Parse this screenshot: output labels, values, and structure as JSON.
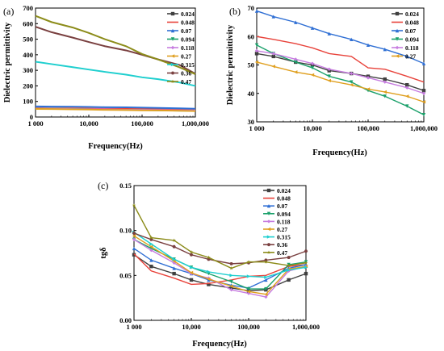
{
  "chart_data": [
    {
      "type": "line",
      "panel_label": "(a)",
      "xlabel": "Frequency(Hz)",
      "ylabel": "Dielectric permittivity",
      "xscale": "log",
      "xlim": [
        1000,
        1000000
      ],
      "ylim": [
        0,
        700
      ],
      "x_ticks": [
        "1 000",
        "10,000",
        "100,000",
        "1,000,000"
      ],
      "y_ticks": [
        "0",
        "100",
        "200",
        "300",
        "400",
        "500",
        "600",
        "700"
      ],
      "legend_position": "top-right",
      "x": [
        1000,
        2000,
        5000,
        10000,
        20000,
        50000,
        100000,
        200000,
        500000,
        1000000
      ],
      "series": [
        {
          "name": "0.024",
          "color": "#404040",
          "marker": "square",
          "values": [
            54,
            53,
            52,
            51,
            50,
            49,
            48,
            47,
            45,
            44
          ]
        },
        {
          "name": "0.048",
          "color": "#e8423a",
          "marker": "circle",
          "values": [
            57,
            56,
            55,
            54,
            53,
            52,
            51,
            50,
            48,
            46
          ]
        },
        {
          "name": "0.07",
          "color": "#2f6fd4",
          "marker": "triangle-up",
          "values": [
            68,
            67,
            66,
            65,
            63,
            62,
            60,
            58,
            56,
            53
          ]
        },
        {
          "name": "0.094",
          "color": "#1aa06a",
          "marker": "triangle-down",
          "values": [
            55,
            54,
            52,
            50,
            48,
            46,
            45,
            43,
            41,
            40
          ]
        },
        {
          "name": "0.118",
          "color": "#c77de0",
          "marker": "diamond",
          "values": [
            54,
            53,
            51,
            50,
            49,
            47,
            46,
            45,
            43,
            42
          ]
        },
        {
          "name": "0.27",
          "color": "#e0a020",
          "marker": "triangle-left",
          "values": [
            52,
            51,
            49,
            48,
            46,
            45,
            43,
            42,
            40,
            38
          ]
        },
        {
          "name": "0.315",
          "color": "#1fcfcf",
          "marker": "triangle-right",
          "values": [
            355,
            340,
            320,
            305,
            290,
            272,
            255,
            243,
            222,
            200
          ]
        },
        {
          "name": "0.36",
          "color": "#7a4040",
          "marker": "hexagon",
          "values": [
            580,
            545,
            510,
            482,
            455,
            428,
            400,
            370,
            335,
            278
          ]
        },
        {
          "name": "0.47",
          "color": "#8c8c1a",
          "marker": "star",
          "values": [
            650,
            610,
            575,
            540,
            500,
            455,
            405,
            370,
            320,
            275
          ]
        }
      ]
    },
    {
      "type": "line",
      "panel_label": "(b)",
      "xlabel": "Frequency(Hz)",
      "ylabel": "Dielectric permittivity",
      "xscale": "log",
      "xlim": [
        1000,
        1000000
      ],
      "ylim": [
        30,
        70
      ],
      "x_ticks": [
        "1 000",
        "10,000",
        "100,000",
        "1,000,000"
      ],
      "y_ticks": [
        "30",
        "40",
        "50",
        "60",
        "70"
      ],
      "legend_position": "top-right",
      "x": [
        1000,
        2000,
        5000,
        10000,
        20000,
        50000,
        100000,
        200000,
        500000,
        1000000
      ],
      "series": [
        {
          "name": "0.024",
          "color": "#404040",
          "marker": "square",
          "values": [
            54,
            53,
            51,
            50,
            48,
            47,
            46,
            45,
            43,
            41
          ]
        },
        {
          "name": "0.048",
          "color": "#e8423a",
          "marker": "circle",
          "values": [
            60,
            59,
            57.5,
            56,
            54,
            53,
            49,
            48.5,
            46,
            44
          ]
        },
        {
          "name": "0.07",
          "color": "#2f6fd4",
          "marker": "triangle-up",
          "values": [
            69,
            67,
            65,
            63,
            61,
            59,
            57,
            55.5,
            53,
            50.5
          ]
        },
        {
          "name": "0.094",
          "color": "#1aa06a",
          "marker": "triangle-down",
          "values": [
            57,
            54,
            51,
            49,
            46,
            44,
            41,
            39,
            35.5,
            32.5
          ]
        },
        {
          "name": "0.118",
          "color": "#c77de0",
          "marker": "diamond",
          "values": [
            55,
            54,
            52,
            50.5,
            48.5,
            47,
            45.5,
            44,
            42,
            40
          ]
        },
        {
          "name": "0.27",
          "color": "#e0a020",
          "marker": "triangle-left",
          "values": [
            51,
            49.5,
            47.5,
            46.5,
            44.5,
            43,
            41.5,
            40.5,
            39,
            37
          ]
        }
      ]
    },
    {
      "type": "line",
      "panel_label": "(c)",
      "xlabel": "Frequency(Hz)",
      "ylabel": "tgδ",
      "xscale": "log",
      "xlim": [
        1000,
        1000000
      ],
      "ylim": [
        0,
        0.15
      ],
      "x_ticks": [
        "1 000",
        "10,000",
        "100,000",
        "1,000,000"
      ],
      "y_ticks": [
        "0.00",
        "0.05",
        "0.10",
        "0.15"
      ],
      "legend_position": "top-right",
      "x": [
        1000,
        2000,
        5000,
        10000,
        20000,
        50000,
        100000,
        200000,
        500000,
        1000000
      ],
      "series": [
        {
          "name": "0.024",
          "color": "#404040",
          "marker": "square",
          "values": [
            0.073,
            0.06,
            0.052,
            0.045,
            0.04,
            0.036,
            0.033,
            0.034,
            0.045,
            0.052
          ]
        },
        {
          "name": "0.048",
          "color": "#e8423a",
          "marker": "circle",
          "values": [
            0.074,
            0.055,
            0.047,
            0.04,
            0.041,
            0.045,
            0.049,
            0.05,
            0.06,
            0.062
          ]
        },
        {
          "name": "0.07",
          "color": "#2f6fd4",
          "marker": "triangle-up",
          "values": [
            0.08,
            0.067,
            0.058,
            0.052,
            0.045,
            0.039,
            0.036,
            0.045,
            0.058,
            0.062
          ]
        },
        {
          "name": "0.094",
          "color": "#1aa06a",
          "marker": "triangle-down",
          "values": [
            0.09,
            0.08,
            0.068,
            0.059,
            0.052,
            0.043,
            0.035,
            0.035,
            0.062,
            0.065
          ]
        },
        {
          "name": "0.118",
          "color": "#c77de0",
          "marker": "diamond",
          "values": [
            0.09,
            0.078,
            0.064,
            0.052,
            0.047,
            0.034,
            0.03,
            0.026,
            0.055,
            0.06
          ]
        },
        {
          "name": "0.27",
          "color": "#e0a020",
          "marker": "triangle-left",
          "values": [
            0.094,
            0.082,
            0.066,
            0.053,
            0.046,
            0.038,
            0.032,
            0.029,
            0.057,
            0.06
          ]
        },
        {
          "name": "0.315",
          "color": "#1fcfcf",
          "marker": "triangle-right",
          "values": [
            0.098,
            0.085,
            0.068,
            0.059,
            0.054,
            0.05,
            0.049,
            0.048,
            0.056,
            0.059
          ]
        },
        {
          "name": "0.36",
          "color": "#7a4040",
          "marker": "hexagon",
          "values": [
            0.097,
            0.09,
            0.082,
            0.073,
            0.068,
            0.063,
            0.064,
            0.067,
            0.07,
            0.077
          ]
        },
        {
          "name": "0.47",
          "color": "#8c8c1a",
          "marker": "star",
          "values": [
            0.128,
            0.092,
            0.089,
            0.076,
            0.07,
            0.058,
            0.065,
            0.065,
            0.061,
            0.064
          ]
        }
      ]
    }
  ]
}
